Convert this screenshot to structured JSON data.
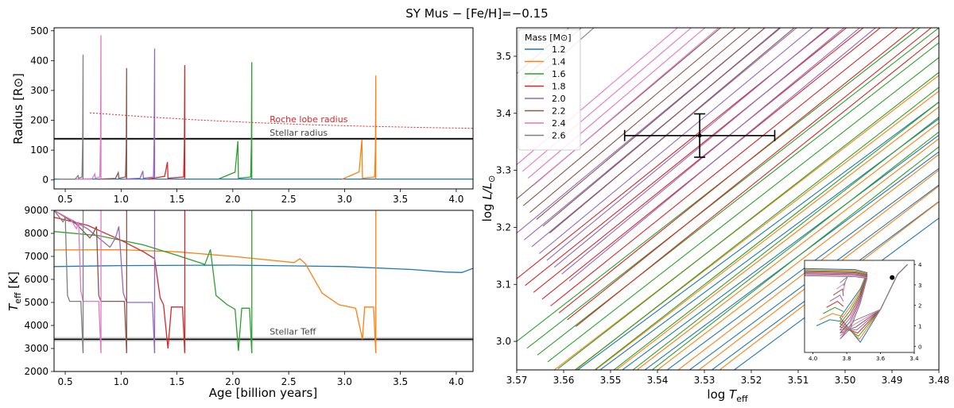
{
  "figure_title": "SY Mus − [Fe/H]=−0.15",
  "legend": {
    "title": "Mass [M$_\\odot$]",
    "title_display": "Mass [M⊙]",
    "entries": [
      {
        "label": "1.2",
        "color": "#1f77b4"
      },
      {
        "label": "1.4",
        "color": "#ff7f0e"
      },
      {
        "label": "1.6",
        "color": "#2ca02c"
      },
      {
        "label": "1.8",
        "color": "#d62728"
      },
      {
        "label": "2.0",
        "color": "#9467bd"
      },
      {
        "label": "2.2",
        "color": "#8c564b"
      },
      {
        "label": "2.4",
        "color": "#e377c2"
      },
      {
        "label": "2.6",
        "color": "#7f7f7f"
      }
    ]
  },
  "chart_data": [
    {
      "type": "line",
      "id": "radius",
      "ylabel": "Radius [R⊙]",
      "xlim": [
        0.4,
        4.15
      ],
      "ylim": [
        -30,
        510
      ],
      "xticks": [
        0.5,
        1.0,
        1.5,
        2.0,
        2.5,
        3.0,
        3.5,
        4.0
      ],
      "xtick_labels": [
        "0.5",
        "1.0",
        "1.5",
        "2.0",
        "2.5",
        "3.0",
        "3.5",
        "4.0"
      ],
      "yticks": [
        0,
        100,
        200,
        300,
        400,
        500
      ],
      "ytick_labels": [
        "0",
        "100",
        "200",
        "300",
        "400",
        "500"
      ],
      "series_spikes": [
        {
          "mass": "1.2",
          "color": "#1f77b4",
          "spike_age": null,
          "spike_radius": null
        },
        {
          "mass": "1.4",
          "color": "#ff7f0e",
          "spike_age": 3.28,
          "spike_radius": 350,
          "pre_bump_age": 3.16,
          "pre_bump_radius": 135
        },
        {
          "mass": "1.6",
          "color": "#2ca02c",
          "spike_age": 2.17,
          "spike_radius": 395,
          "pre_bump_age": 2.05,
          "pre_bump_radius": 130
        },
        {
          "mass": "1.8",
          "color": "#d62728",
          "spike_age": 1.57,
          "spike_radius": 385,
          "pre_bump_age": 1.42,
          "pre_bump_radius": 60
        },
        {
          "mass": "2.0",
          "color": "#9467bd",
          "spike_age": 1.3,
          "spike_radius": 440,
          "pre_bump_age": 1.2,
          "pre_bump_radius": 30
        },
        {
          "mass": "2.2",
          "color": "#8c564b",
          "spike_age": 1.05,
          "spike_radius": 375,
          "pre_bump_age": 0.98,
          "pre_bump_radius": 25
        },
        {
          "mass": "2.4",
          "color": "#e377c2",
          "spike_age": 0.82,
          "spike_radius": 485,
          "pre_bump_age": 0.77,
          "pre_bump_radius": 20
        },
        {
          "mass": "2.6",
          "color": "#7f7f7f",
          "spike_age": 0.66,
          "spike_radius": 420,
          "pre_bump_age": 0.62,
          "pre_bump_radius": 15
        }
      ],
      "stellar_radius": {
        "value": 138,
        "band": [
          133,
          143
        ],
        "label": "Stellar radius"
      },
      "roche_lobe": {
        "label": "Roche lobe radius",
        "x": [
          0.72,
          1.2,
          1.7,
          2.2,
          2.7,
          3.2,
          3.7,
          4.15
        ],
        "y": [
          225,
          212,
          201,
          192,
          185,
          180,
          176,
          173
        ]
      }
    },
    {
      "type": "line",
      "id": "teff",
      "xlabel": "Age [billion years]",
      "ylabel": "T_eff [K]",
      "xlim": [
        0.4,
        4.15
      ],
      "ylim": [
        2000,
        9000
      ],
      "xticks": [
        0.5,
        1.0,
        1.5,
        2.0,
        2.5,
        3.0,
        3.5,
        4.0
      ],
      "xtick_labels": [
        "0.5",
        "1.0",
        "1.5",
        "2.0",
        "2.5",
        "3.0",
        "3.5",
        "4.0"
      ],
      "yticks": [
        2000,
        3000,
        4000,
        5000,
        6000,
        7000,
        8000,
        9000
      ],
      "ytick_labels": [
        "2000",
        "3000",
        "4000",
        "5000",
        "6000",
        "7000",
        "8000",
        "9000"
      ],
      "series": [
        {
          "mass": "1.2",
          "color": "#1f77b4",
          "x": [
            0.4,
            1.0,
            2.0,
            3.0,
            3.6,
            3.9,
            4.05,
            4.15
          ],
          "y": [
            6560,
            6600,
            6620,
            6560,
            6430,
            6320,
            6300,
            6480
          ]
        },
        {
          "mass": "1.4",
          "color": "#ff7f0e",
          "x": [
            0.4,
            1.0,
            1.5,
            2.0,
            2.55,
            2.6,
            2.65,
            2.8,
            2.95,
            3.1,
            3.16,
            3.18,
            3.26,
            3.28
          ],
          "y": [
            7280,
            7290,
            7200,
            7000,
            6730,
            6900,
            6680,
            5400,
            4900,
            4750,
            3400,
            4800,
            4800,
            2800
          ]
        },
        {
          "mass": "1.6",
          "color": "#2ca02c",
          "x": [
            0.4,
            0.8,
            1.2,
            1.5,
            1.75,
            1.8,
            1.85,
            1.95,
            2.02,
            2.05,
            2.08,
            2.15,
            2.17
          ],
          "y": [
            8080,
            7900,
            7500,
            7050,
            6650,
            7300,
            5300,
            4900,
            4700,
            2900,
            4750,
            4750,
            2800
          ]
        },
        {
          "mass": "1.8",
          "color": "#d62728",
          "x": [
            0.4,
            0.7,
            1.0,
            1.2,
            1.3,
            1.35,
            1.38,
            1.42,
            1.45,
            1.55,
            1.57
          ],
          "y": [
            8700,
            8350,
            7700,
            7200,
            6900,
            5200,
            4900,
            3000,
            4800,
            4800,
            2800
          ]
        },
        {
          "mass": "2.0",
          "color": "#9467bd",
          "x": [
            0.4,
            0.7,
            0.9,
            0.95,
            0.98,
            1.02,
            1.05,
            1.28,
            1.3
          ],
          "y": [
            9000,
            8200,
            7400,
            7800,
            8300,
            5400,
            5000,
            5000,
            2800
          ]
        },
        {
          "mass": "2.2",
          "color": "#8c564b",
          "x": [
            0.4,
            0.6,
            0.72,
            0.75,
            0.78,
            0.8,
            0.82,
            1.03,
            1.05
          ],
          "y": [
            9000,
            8400,
            7800,
            8000,
            8300,
            5300,
            5050,
            5050,
            2800
          ]
        },
        {
          "mass": "2.4",
          "color": "#e377c2",
          "x": [
            0.4,
            0.55,
            0.6,
            0.62,
            0.64,
            0.66,
            0.8,
            0.82
          ],
          "y": [
            9000,
            8600,
            8200,
            8500,
            5500,
            5050,
            5050,
            2800
          ]
        },
        {
          "mass": "2.6",
          "color": "#7f7f7f",
          "x": [
            0.4,
            0.48,
            0.5,
            0.52,
            0.54,
            0.64,
            0.66
          ],
          "y": [
            9000,
            8500,
            8700,
            5300,
            5050,
            5050,
            2800
          ]
        }
      ],
      "stellar_teff": {
        "value": 3400,
        "band": [
          3300,
          3500
        ],
        "label": "Stellar Teff"
      }
    },
    {
      "type": "line",
      "id": "hrd",
      "xlabel": "log T_eff",
      "ylabel": "log L/L⊙",
      "xlim": [
        3.57,
        3.48
      ],
      "ylim": [
        2.95,
        3.55
      ],
      "xticks": [
        3.57,
        3.56,
        3.55,
        3.54,
        3.53,
        3.52,
        3.51,
        3.5,
        3.49,
        3.48
      ],
      "xtick_labels": [
        "3.57",
        "3.56",
        "3.55",
        "3.54",
        "3.53",
        "3.52",
        "3.51",
        "3.50",
        "3.49",
        "3.48"
      ],
      "yticks": [
        3.0,
        3.1,
        3.2,
        3.3,
        3.4,
        3.5
      ],
      "ytick_labels": [
        "3.0",
        "3.1",
        "3.2",
        "3.3",
        "3.4",
        "3.5"
      ],
      "observation": {
        "x": 3.531,
        "y": 3.361,
        "xerr": 0.016,
        "yerr": 0.038
      },
      "tracks": [
        {
          "mass": "1.2",
          "color": "#1f77b4",
          "x0": 3.557,
          "y0": 2.95,
          "slope": 6.1,
          "count": 8,
          "spacing": 0.0028
        },
        {
          "mass": "1.4",
          "color": "#ff7f0e",
          "x0": 3.562,
          "y0": 2.95,
          "slope": 6.3,
          "count": 9,
          "spacing": 0.0025
        },
        {
          "mass": "1.6",
          "color": "#2ca02c",
          "x0": 3.57,
          "y0": 3.0,
          "slope": 6.4,
          "count": 10,
          "spacing": 0.0022
        },
        {
          "mass": "1.8",
          "color": "#d62728",
          "x0": 3.57,
          "y0": 3.11,
          "slope": 6.6,
          "count": 8,
          "spacing": 0.0018
        },
        {
          "mass": "2.0",
          "color": "#9467bd",
          "x0": 3.57,
          "y0": 3.19,
          "slope": 6.8,
          "count": 8,
          "spacing": 0.0016
        },
        {
          "mass": "2.2",
          "color": "#8c564b",
          "x0": 3.57,
          "y0": 3.25,
          "slope": 6.9,
          "count": 6,
          "spacing": 0.0014
        },
        {
          "mass": "2.4",
          "color": "#e377c2",
          "x0": 3.57,
          "y0": 3.31,
          "slope": 7.0,
          "count": 4,
          "spacing": 0.0012
        },
        {
          "mass": "2.6",
          "color": "#7f7f7f",
          "x0": 3.57,
          "y0": 3.47,
          "slope": 7.2,
          "count": 3,
          "spacing": 0.001
        }
      ]
    },
    {
      "type": "line",
      "id": "hrd-inset",
      "xlim": [
        4.05,
        3.4
      ],
      "ylim": [
        -0.3,
        4.2
      ],
      "xticks": [
        4.0,
        3.8,
        3.6,
        3.4
      ],
      "xtick_labels": [
        "4.0",
        "3.8",
        "3.6",
        "3.4"
      ],
      "yticks": [
        0,
        1,
        2,
        3,
        4
      ],
      "ytick_labels": [
        "0",
        "1",
        "2",
        "3",
        "4"
      ],
      "observation": {
        "x": 3.531,
        "y": 3.36
      }
    }
  ]
}
